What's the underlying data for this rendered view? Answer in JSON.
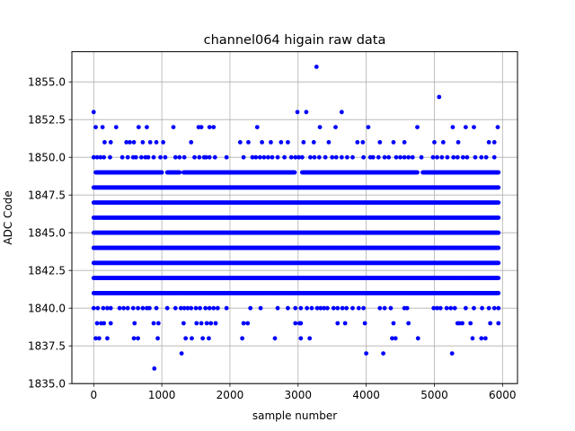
{
  "chart_data": {
    "type": "scatter",
    "title": "channel064 higain raw data",
    "xlabel": "sample number",
    "ylabel": "ADC Code",
    "xlim": [
      -320,
      6220
    ],
    "ylim": [
      1835.0,
      1857.0
    ],
    "xticks": [
      0,
      1000,
      2000,
      3000,
      4000,
      5000,
      6000
    ],
    "xtick_labels": [
      "0",
      "1000",
      "2000",
      "3000",
      "4000",
      "5000",
      "6000"
    ],
    "yticks": [
      1835.0,
      1837.5,
      1840.0,
      1842.5,
      1845.0,
      1847.5,
      1850.0,
      1852.5,
      1855.0
    ],
    "ytick_labels": [
      "1835.0",
      "1837.5",
      "1840.0",
      "1842.5",
      "1845.0",
      "1847.5",
      "1850.0",
      "1852.5",
      "1855.0"
    ],
    "grid": true,
    "marker_color": "#0000ff",
    "series": [
      {
        "bands": [
          {
            "y": 1841,
            "ranges": [
              [
                0,
                5940
              ]
            ]
          },
          {
            "y": 1842,
            "ranges": [
              [
                0,
                5940
              ]
            ]
          },
          {
            "y": 1843,
            "ranges": [
              [
                0,
                5940
              ]
            ]
          },
          {
            "y": 1844,
            "ranges": [
              [
                0,
                5940
              ]
            ]
          },
          {
            "y": 1845,
            "ranges": [
              [
                0,
                5940
              ]
            ]
          },
          {
            "y": 1846,
            "ranges": [
              [
                0,
                5940
              ]
            ]
          },
          {
            "y": 1847,
            "ranges": [
              [
                0,
                5940
              ]
            ]
          },
          {
            "y": 1848,
            "ranges": [
              [
                0,
                5940
              ]
            ]
          },
          {
            "y": 1849,
            "ranges": [
              [
                30,
                1000
              ],
              [
                1080,
                1260
              ],
              [
                1320,
                2950
              ],
              [
                3060,
                4750
              ],
              [
                4830,
                5940
              ]
            ]
          }
        ],
        "points": [
          [
            0,
            1853
          ],
          [
            30,
            1852
          ],
          [
            130,
            1852
          ],
          [
            160,
            1851
          ],
          [
            250,
            1851
          ],
          [
            330,
            1852
          ],
          [
            480,
            1851
          ],
          [
            530,
            1851
          ],
          [
            590,
            1851
          ],
          [
            660,
            1852
          ],
          [
            720,
            1851
          ],
          [
            780,
            1852
          ],
          [
            830,
            1851
          ],
          [
            920,
            1851
          ],
          [
            1020,
            1851
          ],
          [
            1170,
            1852
          ],
          [
            1430,
            1851
          ],
          [
            1540,
            1852
          ],
          [
            1580,
            1852
          ],
          [
            1700,
            1852
          ],
          [
            1760,
            1852
          ],
          [
            2150,
            1851
          ],
          [
            2270,
            1851
          ],
          [
            2400,
            1852
          ],
          [
            2470,
            1851
          ],
          [
            2600,
            1851
          ],
          [
            2750,
            1851
          ],
          [
            2850,
            1851
          ],
          [
            2990,
            1853
          ],
          [
            3080,
            1851
          ],
          [
            3120,
            1853
          ],
          [
            3230,
            1851
          ],
          [
            3270,
            1856
          ],
          [
            3320,
            1852
          ],
          [
            3450,
            1851
          ],
          [
            3550,
            1852
          ],
          [
            3640,
            1853
          ],
          [
            3870,
            1851
          ],
          [
            3950,
            1851
          ],
          [
            4030,
            1852
          ],
          [
            4200,
            1851
          ],
          [
            4400,
            1851
          ],
          [
            4560,
            1851
          ],
          [
            4750,
            1852
          ],
          [
            5000,
            1851
          ],
          [
            5070,
            1854
          ],
          [
            5130,
            1851
          ],
          [
            5270,
            1852
          ],
          [
            5350,
            1851
          ],
          [
            5460,
            1852
          ],
          [
            5580,
            1852
          ],
          [
            5800,
            1851
          ],
          [
            5880,
            1851
          ],
          [
            5930,
            1852
          ],
          [
            0,
            1850
          ],
          [
            50,
            1850
          ],
          [
            100,
            1850
          ],
          [
            150,
            1850
          ],
          [
            240,
            1850
          ],
          [
            420,
            1850
          ],
          [
            500,
            1850
          ],
          [
            580,
            1850
          ],
          [
            620,
            1850
          ],
          [
            700,
            1850
          ],
          [
            760,
            1850
          ],
          [
            800,
            1850
          ],
          [
            880,
            1850
          ],
          [
            980,
            1850
          ],
          [
            1050,
            1850
          ],
          [
            1200,
            1850
          ],
          [
            1260,
            1850
          ],
          [
            1330,
            1850
          ],
          [
            1480,
            1850
          ],
          [
            1550,
            1850
          ],
          [
            1620,
            1850
          ],
          [
            1650,
            1850
          ],
          [
            1700,
            1850
          ],
          [
            1780,
            1850
          ],
          [
            1950,
            1850
          ],
          [
            2200,
            1850
          ],
          [
            2330,
            1850
          ],
          [
            2380,
            1850
          ],
          [
            2440,
            1850
          ],
          [
            2500,
            1850
          ],
          [
            2560,
            1850
          ],
          [
            2620,
            1850
          ],
          [
            2700,
            1850
          ],
          [
            2800,
            1850
          ],
          [
            2900,
            1850
          ],
          [
            2960,
            1850
          ],
          [
            3010,
            1850
          ],
          [
            3060,
            1850
          ],
          [
            3180,
            1850
          ],
          [
            3240,
            1850
          ],
          [
            3310,
            1850
          ],
          [
            3400,
            1850
          ],
          [
            3500,
            1850
          ],
          [
            3560,
            1850
          ],
          [
            3640,
            1850
          ],
          [
            3720,
            1850
          ],
          [
            3800,
            1850
          ],
          [
            3960,
            1850
          ],
          [
            4060,
            1850
          ],
          [
            4100,
            1850
          ],
          [
            4180,
            1850
          ],
          [
            4270,
            1850
          ],
          [
            4330,
            1850
          ],
          [
            4440,
            1850
          ],
          [
            4500,
            1850
          ],
          [
            4560,
            1850
          ],
          [
            4620,
            1850
          ],
          [
            4680,
            1850
          ],
          [
            4810,
            1850
          ],
          [
            4980,
            1850
          ],
          [
            5040,
            1850
          ],
          [
            5110,
            1850
          ],
          [
            5190,
            1850
          ],
          [
            5280,
            1850
          ],
          [
            5340,
            1850
          ],
          [
            5420,
            1850
          ],
          [
            5480,
            1850
          ],
          [
            5600,
            1850
          ],
          [
            5690,
            1850
          ],
          [
            5760,
            1850
          ],
          [
            5880,
            1850
          ],
          [
            0,
            1840
          ],
          [
            60,
            1840
          ],
          [
            140,
            1840
          ],
          [
            200,
            1840
          ],
          [
            250,
            1840
          ],
          [
            380,
            1840
          ],
          [
            440,
            1840
          ],
          [
            500,
            1840
          ],
          [
            580,
            1840
          ],
          [
            650,
            1840
          ],
          [
            720,
            1840
          ],
          [
            780,
            1840
          ],
          [
            820,
            1840
          ],
          [
            920,
            1840
          ],
          [
            1080,
            1840
          ],
          [
            1200,
            1840
          ],
          [
            1280,
            1840
          ],
          [
            1330,
            1840
          ],
          [
            1380,
            1840
          ],
          [
            1430,
            1840
          ],
          [
            1500,
            1840
          ],
          [
            1560,
            1840
          ],
          [
            1640,
            1840
          ],
          [
            1700,
            1840
          ],
          [
            1760,
            1840
          ],
          [
            1820,
            1840
          ],
          [
            1950,
            1840
          ],
          [
            2300,
            1840
          ],
          [
            2450,
            1840
          ],
          [
            2700,
            1840
          ],
          [
            2850,
            1840
          ],
          [
            2960,
            1840
          ],
          [
            3040,
            1840
          ],
          [
            3130,
            1840
          ],
          [
            3200,
            1840
          ],
          [
            3280,
            1840
          ],
          [
            3330,
            1840
          ],
          [
            3380,
            1840
          ],
          [
            3430,
            1840
          ],
          [
            3520,
            1840
          ],
          [
            3580,
            1840
          ],
          [
            3650,
            1840
          ],
          [
            3710,
            1840
          ],
          [
            3800,
            1840
          ],
          [
            3890,
            1840
          ],
          [
            3960,
            1840
          ],
          [
            4200,
            1840
          ],
          [
            4270,
            1840
          ],
          [
            4360,
            1840
          ],
          [
            4560,
            1840
          ],
          [
            4600,
            1840
          ],
          [
            4990,
            1840
          ],
          [
            5040,
            1840
          ],
          [
            5090,
            1840
          ],
          [
            5180,
            1840
          ],
          [
            5240,
            1840
          ],
          [
            5300,
            1840
          ],
          [
            5460,
            1840
          ],
          [
            5580,
            1840
          ],
          [
            5700,
            1840
          ],
          [
            5800,
            1840
          ],
          [
            5880,
            1840
          ],
          [
            5940,
            1840
          ],
          [
            50,
            1839
          ],
          [
            110,
            1839
          ],
          [
            150,
            1839
          ],
          [
            250,
            1839
          ],
          [
            600,
            1839
          ],
          [
            880,
            1839
          ],
          [
            950,
            1839
          ],
          [
            1320,
            1839
          ],
          [
            1510,
            1839
          ],
          [
            1580,
            1839
          ],
          [
            1660,
            1839
          ],
          [
            1720,
            1839
          ],
          [
            1790,
            1839
          ],
          [
            2200,
            1839
          ],
          [
            2260,
            1839
          ],
          [
            2960,
            1839
          ],
          [
            3020,
            1839
          ],
          [
            3040,
            1839
          ],
          [
            3580,
            1839
          ],
          [
            3690,
            1839
          ],
          [
            3980,
            1839
          ],
          [
            4400,
            1839
          ],
          [
            4620,
            1839
          ],
          [
            5340,
            1839
          ],
          [
            5370,
            1839
          ],
          [
            5410,
            1839
          ],
          [
            5530,
            1839
          ],
          [
            5820,
            1839
          ],
          [
            5940,
            1839
          ],
          [
            30,
            1838
          ],
          [
            80,
            1838
          ],
          [
            200,
            1838
          ],
          [
            590,
            1838
          ],
          [
            650,
            1838
          ],
          [
            940,
            1838
          ],
          [
            1350,
            1838
          ],
          [
            1440,
            1838
          ],
          [
            1600,
            1838
          ],
          [
            1690,
            1838
          ],
          [
            2180,
            1838
          ],
          [
            2660,
            1838
          ],
          [
            3040,
            1838
          ],
          [
            3170,
            1838
          ],
          [
            4380,
            1838
          ],
          [
            4430,
            1838
          ],
          [
            4760,
            1838
          ],
          [
            5560,
            1838
          ],
          [
            5690,
            1838
          ],
          [
            5750,
            1838
          ],
          [
            1290,
            1837
          ],
          [
            4000,
            1837
          ],
          [
            4250,
            1837
          ],
          [
            5260,
            1837
          ],
          [
            890,
            1836
          ]
        ]
      }
    ]
  }
}
